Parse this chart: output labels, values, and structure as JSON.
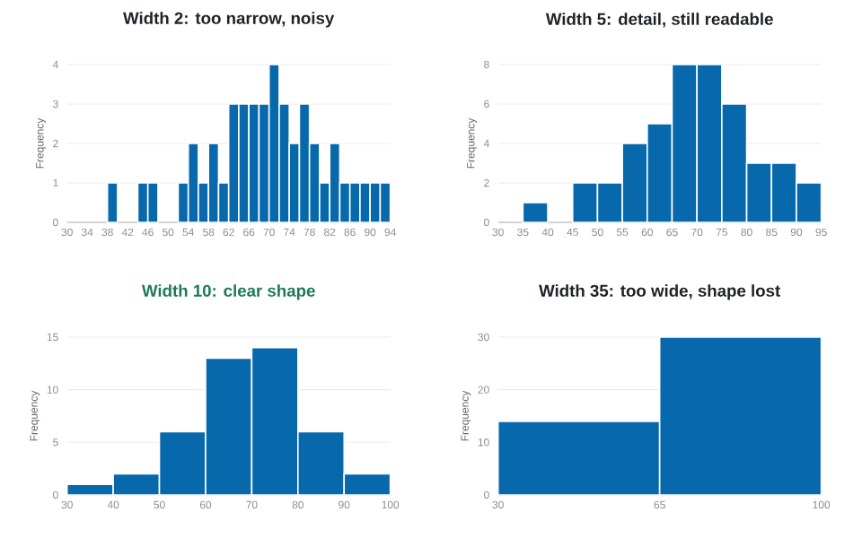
{
  "chart_data": [
    {
      "type": "histogram",
      "title": "Width 2: too narrow, noisy",
      "ylabel": "Frequency",
      "color": "#0868ac",
      "grid": "y",
      "bins": [
        30,
        32,
        34,
        36,
        38,
        40,
        42,
        44,
        46,
        48,
        50,
        52,
        54,
        56,
        58,
        60,
        62,
        64,
        66,
        68,
        70,
        72,
        74,
        76,
        78,
        80,
        82,
        84,
        86,
        88,
        90,
        92,
        94
      ],
      "values": [
        0,
        0,
        0,
        0,
        1,
        0,
        0,
        1,
        1,
        0,
        0,
        1,
        2,
        1,
        2,
        1,
        3,
        3,
        3,
        3,
        4,
        3,
        2,
        3,
        2,
        1,
        2,
        1,
        1,
        1,
        1,
        1
      ],
      "xlim": [
        30,
        94
      ],
      "xticks": [
        30,
        34,
        38,
        42,
        46,
        50,
        54,
        58,
        62,
        66,
        70,
        74,
        78,
        82,
        86,
        90,
        94
      ],
      "ylim": [
        0,
        4
      ],
      "yticks": [
        0,
        1,
        2,
        3,
        4
      ]
    },
    {
      "type": "histogram",
      "title": "Width 5: detail, still readable",
      "ylabel": "Frequency",
      "color": "#0868ac",
      "grid": "y",
      "bins": [
        30,
        35,
        40,
        45,
        50,
        55,
        60,
        65,
        70,
        75,
        80,
        85,
        90,
        95
      ],
      "values": [
        0,
        1,
        0,
        2,
        2,
        4,
        5,
        8,
        8,
        6,
        3,
        3,
        2
      ],
      "xlim": [
        30,
        95
      ],
      "xticks": [
        30,
        35,
        40,
        45,
        50,
        55,
        60,
        65,
        70,
        75,
        80,
        85,
        90,
        95
      ],
      "ylim": [
        0,
        8
      ],
      "yticks": [
        0,
        2,
        4,
        6,
        8
      ]
    },
    {
      "type": "histogram",
      "title": "Width 10: clear shape",
      "ylabel": "Frequency",
      "color": "#0868ac",
      "grid": "y",
      "bins": [
        30,
        40,
        50,
        60,
        70,
        80,
        90,
        100
      ],
      "values": [
        1,
        2,
        6,
        13,
        14,
        6,
        2
      ],
      "xlim": [
        30,
        100
      ],
      "xticks": [
        30,
        40,
        50,
        60,
        70,
        80,
        90,
        100
      ],
      "ylim": [
        0,
        15
      ],
      "yticks": [
        0,
        5,
        10,
        15
      ]
    },
    {
      "type": "histogram",
      "title": "Width 35: too wide, shape lost",
      "ylabel": "Frequency",
      "color": "#0868ac",
      "grid": "y",
      "bins": [
        30,
        65,
        100
      ],
      "values": [
        14,
        30
      ],
      "xlim": [
        30,
        100
      ],
      "xticks": [
        30,
        65,
        100
      ],
      "ylim": [
        0,
        30
      ],
      "yticks": [
        0,
        10,
        20,
        30
      ]
    }
  ]
}
